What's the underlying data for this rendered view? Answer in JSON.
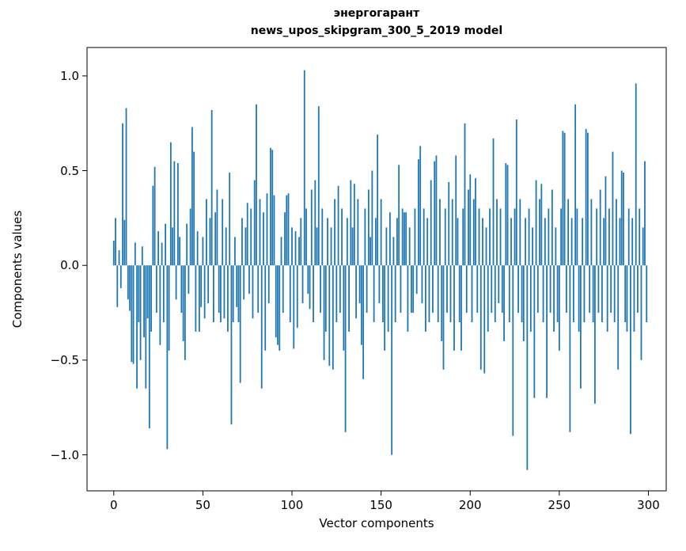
{
  "chart_data": {
    "type": "bar",
    "title_line1": "энергогарант",
    "title_line2": "news_upos_skipgram_300_5_2019 model",
    "xlabel": "Vector components",
    "ylabel": "Components values",
    "xlim": [
      -15,
      310
    ],
    "ylim": [
      -1.19,
      1.15
    ],
    "x_ticks": [
      0,
      50,
      100,
      150,
      200,
      250,
      300
    ],
    "y_tick_values": [
      1.0,
      0.5,
      0.0,
      -0.5,
      -1.0
    ],
    "y_tick_labels": [
      "1.0",
      "0.5",
      "0.0",
      "−0.5",
      "−1.0"
    ],
    "bar_color": "#1f77b4",
    "grid": false,
    "legend": "none",
    "values": [
      0.13,
      0.25,
      -0.22,
      0.08,
      -0.12,
      0.75,
      0.24,
      0.83,
      -0.18,
      -0.24,
      -0.51,
      -0.52,
      0.12,
      -0.65,
      -0.3,
      -0.5,
      0.1,
      -0.38,
      -0.65,
      -0.28,
      -0.86,
      -0.35,
      0.42,
      0.52,
      -0.25,
      0.18,
      -0.42,
      0.12,
      -0.3,
      0.22,
      -0.97,
      -0.45,
      0.65,
      0.2,
      0.55,
      -0.18,
      0.54,
      0.15,
      -0.25,
      -0.4,
      -0.5,
      0.22,
      -0.15,
      0.3,
      0.73,
      0.6,
      -0.35,
      0.18,
      -0.35,
      -0.22,
      0.15,
      -0.28,
      0.35,
      -0.2,
      0.25,
      0.82,
      -0.3,
      0.28,
      0.4,
      -0.25,
      -0.3,
      0.35,
      -0.28,
      0.2,
      -0.35,
      0.49,
      -0.84,
      -0.3,
      0.15,
      -0.22,
      -0.3,
      -0.62,
      0.25,
      -0.18,
      0.2,
      0.33,
      -0.15,
      0.3,
      -0.28,
      0.45,
      0.85,
      -0.25,
      0.35,
      -0.65,
      0.28,
      -0.45,
      0.38,
      -0.2,
      0.62,
      0.61,
      0.37,
      -0.38,
      -0.42,
      -0.45,
      0.15,
      -0.25,
      0.28,
      0.37,
      0.38,
      -0.3,
      0.2,
      -0.44,
      0.18,
      -0.33,
      0.15,
      0.25,
      -0.2,
      1.03,
      0.3,
      -0.15,
      -0.23,
      0.4,
      -0.3,
      0.45,
      0.2,
      0.84,
      -0.25,
      0.3,
      -0.5,
      -0.35,
      0.25,
      -0.53,
      0.2,
      -0.55,
      0.35,
      -0.3,
      0.42,
      -0.25,
      0.3,
      -0.45,
      -0.88,
      0.25,
      -0.35,
      0.45,
      0.2,
      0.43,
      -0.28,
      0.35,
      -0.2,
      -0.42,
      -0.6,
      0.3,
      -0.25,
      0.4,
      0.15,
      0.5,
      -0.3,
      0.25,
      0.69,
      -0.2,
      0.35,
      -0.3,
      -0.45,
      0.2,
      -0.35,
      0.28,
      -1.0,
      0.15,
      -0.3,
      0.25,
      0.53,
      -0.25,
      0.3,
      0.28,
      0.28,
      -0.35,
      0.2,
      -0.25,
      -0.25,
      0.3,
      -0.15,
      0.56,
      0.63,
      -0.2,
      0.3,
      -0.35,
      0.25,
      -0.3,
      0.45,
      -0.25,
      0.55,
      0.58,
      -0.3,
      0.35,
      -0.4,
      -0.55,
      0.3,
      -0.25,
      0.44,
      -0.3,
      0.35,
      -0.45,
      0.58,
      0.25,
      -0.3,
      -0.45,
      0.3,
      0.75,
      -0.25,
      0.4,
      0.48,
      -0.3,
      0.35,
      0.46,
      -0.25,
      0.3,
      -0.55,
      0.25,
      -0.57,
      0.2,
      -0.35,
      0.3,
      -0.25,
      0.67,
      -0.3,
      0.35,
      -0.2,
      0.3,
      -0.25,
      -0.4,
      0.54,
      0.53,
      -0.3,
      0.25,
      -0.9,
      0.3,
      0.77,
      -0.25,
      0.35,
      -0.3,
      -0.4,
      0.25,
      -1.08,
      0.3,
      -0.35,
      0.2,
      -0.7,
      0.45,
      -0.25,
      0.35,
      0.43,
      -0.3,
      0.25,
      -0.7,
      0.3,
      -0.25,
      0.4,
      -0.35,
      0.2,
      -0.3,
      -0.45,
      0.3,
      0.71,
      0.7,
      -0.25,
      0.35,
      -0.88,
      0.25,
      -0.3,
      0.85,
      0.3,
      -0.35,
      -0.65,
      0.25,
      -0.3,
      0.72,
      0.7,
      -0.25,
      0.35,
      -0.3,
      -0.73,
      0.3,
      -0.25,
      0.4,
      -0.3,
      0.25,
      0.47,
      -0.35,
      0.3,
      -0.25,
      0.6,
      -0.3,
      0.35,
      -0.55,
      0.25,
      0.5,
      0.49,
      -0.3,
      -0.35,
      0.3,
      -0.89,
      0.25,
      -0.35,
      0.96,
      -0.25,
      0.3,
      -0.5,
      0.2,
      0.55,
      -0.3
    ]
  }
}
